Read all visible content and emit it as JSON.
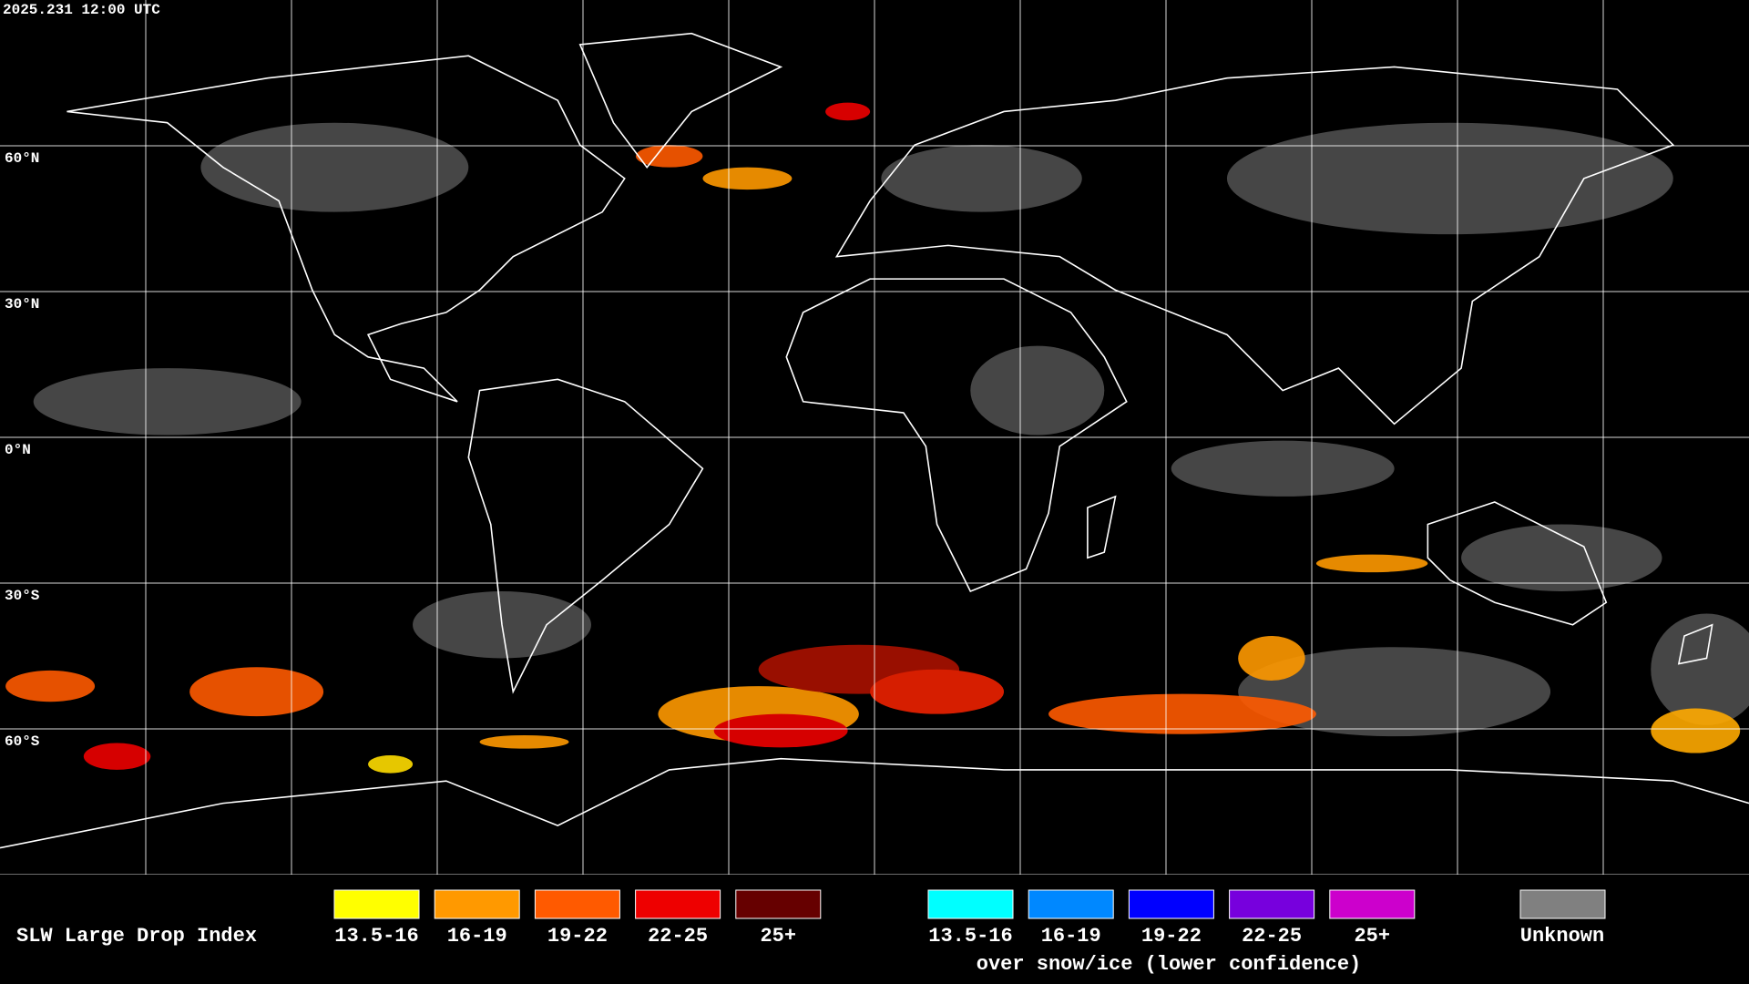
{
  "header": {
    "timestamp": "2025.231 12:00 UTC"
  },
  "map": {
    "latitude_labels": [
      "60°N",
      "30°N",
      "0°N",
      "30°S",
      "60°S"
    ]
  },
  "legend": {
    "title": "SLW Large Drop Index",
    "items": [
      {
        "label": "13.5-16",
        "color": "#ffff00"
      },
      {
        "label": "16-19",
        "color": "#ff9900"
      },
      {
        "label": "19-22",
        "color": "#ff5a00"
      },
      {
        "label": "22-25",
        "color": "#ee0000"
      },
      {
        "label": "25+",
        "color": "#660000"
      }
    ],
    "snow_ice_items": [
      {
        "label": "13.5-16",
        "color": "#00ffff"
      },
      {
        "label": "16-19",
        "color": "#0088ff"
      },
      {
        "label": "19-22",
        "color": "#0000ff"
      },
      {
        "label": "22-25",
        "color": "#7700dd"
      },
      {
        "label": "25+",
        "color": "#cc00cc"
      }
    ],
    "snow_ice_caption": "over snow/ice (lower confidence)",
    "unknown": {
      "label": "Unknown",
      "color": "#808080"
    }
  }
}
